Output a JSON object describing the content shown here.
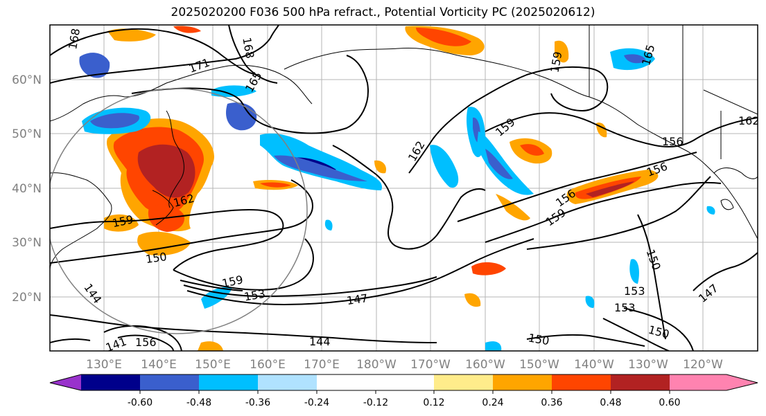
{
  "title": "2025020200 F036 500 hPa refract., Potential Vorticity PC (2025020612)",
  "latitude_labels": [
    "60°N",
    "50°N",
    "40°N",
    "30°N",
    "20°N"
  ],
  "longitude_labels": [
    "130°E",
    "140°E",
    "150°E",
    "160°E",
    "170°E",
    "180°W",
    "170°W",
    "160°W",
    "150°W",
    "140°W",
    "130°W",
    "120°W"
  ],
  "colorbar": {
    "colors": [
      "#9932cc",
      "#00008b",
      "#3a5fcd",
      "#00bfff",
      "#b0e2ff",
      "#ffffff",
      "#ffec8b",
      "#ffa500",
      "#ff4500",
      "#b22222",
      "#ff83b0"
    ],
    "tick_labels": [
      "-0.60",
      "-0.48",
      "-0.36",
      "-0.24",
      "-0.12",
      "0.12",
      "0.24",
      "0.36",
      "0.48",
      "0.60"
    ]
  },
  "contour_labels": [
    "168",
    "171",
    "168",
    "165",
    "159",
    "165",
    "162",
    "159",
    "162",
    "156",
    "156",
    "159",
    "150",
    "159",
    "153",
    "147",
    "144",
    "150",
    "153",
    "153",
    "150",
    "147",
    "144",
    "141",
    "156",
    "150",
    "159",
    "156",
    "162"
  ]
}
